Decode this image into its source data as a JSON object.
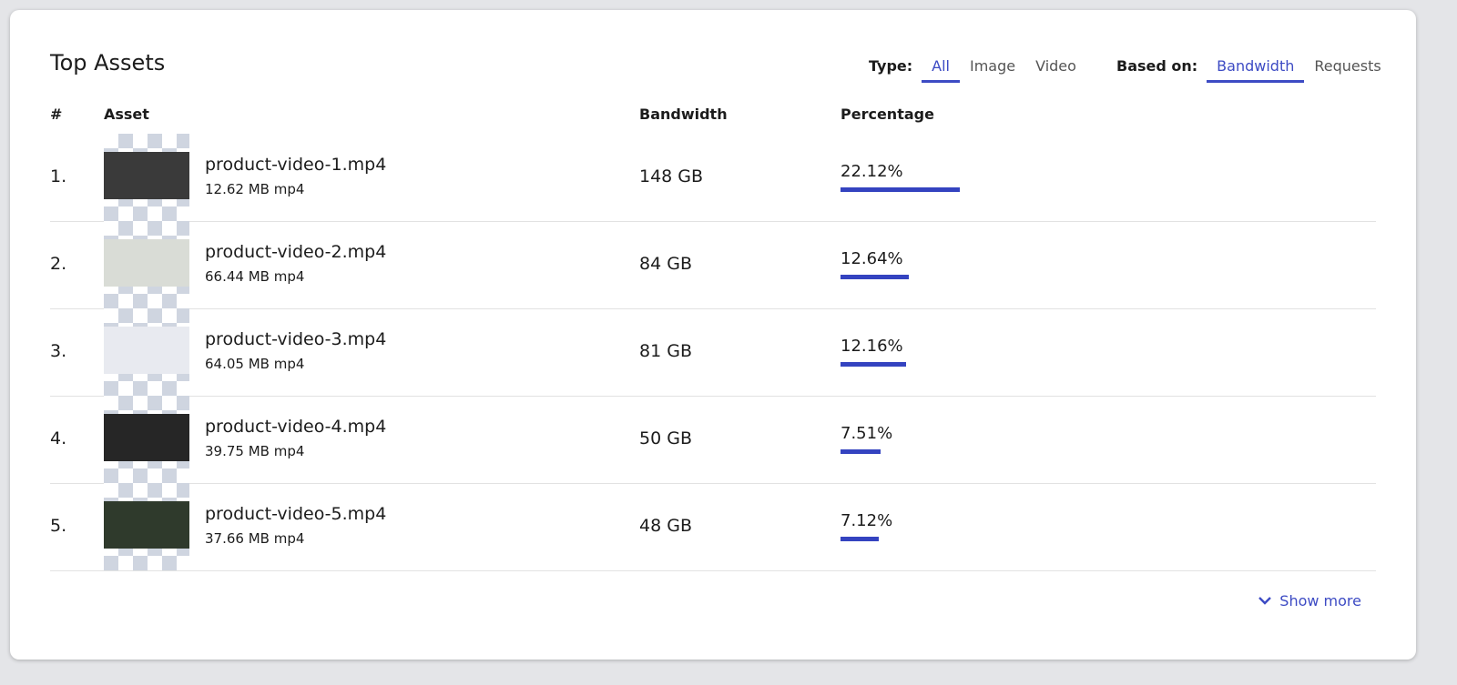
{
  "header": {
    "title": "Top Assets"
  },
  "filters": {
    "type": {
      "label": "Type:",
      "options": [
        "All",
        "Image",
        "Video"
      ],
      "active": 0
    },
    "based_on": {
      "label": "Based on:",
      "options": [
        "Bandwidth",
        "Requests"
      ],
      "active": 0
    }
  },
  "table": {
    "columns": [
      "#",
      "Asset",
      "Bandwidth",
      "Percentage"
    ],
    "rows": [
      {
        "rank": "1.",
        "name": "product-video-1.mp4",
        "meta": "12.62 MB mp4",
        "bandwidth": "148 GB",
        "percentage": 22.12,
        "percentage_label": "22.12%",
        "thumb": "#3a3a3a"
      },
      {
        "rank": "2.",
        "name": "product-video-2.mp4",
        "meta": "66.44 MB mp4",
        "bandwidth": "84 GB",
        "percentage": 12.64,
        "percentage_label": "12.64%",
        "thumb": "#d9dcd6"
      },
      {
        "rank": "3.",
        "name": "product-video-3.mp4",
        "meta": "64.05 MB mp4",
        "bandwidth": "81 GB",
        "percentage": 12.16,
        "percentage_label": "12.16%",
        "thumb": "#e8eaf0"
      },
      {
        "rank": "4.",
        "name": "product-video-4.mp4",
        "meta": "39.75 MB mp4",
        "bandwidth": "50 GB",
        "percentage": 7.51,
        "percentage_label": "7.51%",
        "thumb": "#262626"
      },
      {
        "rank": "5.",
        "name": "product-video-5.mp4",
        "meta": "37.66 MB mp4",
        "bandwidth": "48 GB",
        "percentage": 7.12,
        "percentage_label": "7.12%",
        "thumb": "#2f3a2c"
      }
    ]
  },
  "footer": {
    "show_more": "Show more"
  }
}
